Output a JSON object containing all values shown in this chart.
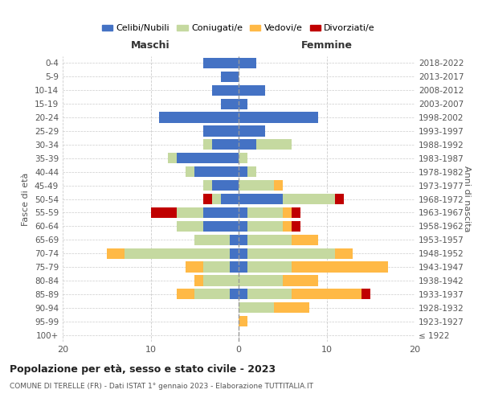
{
  "age_groups": [
    "100+",
    "95-99",
    "90-94",
    "85-89",
    "80-84",
    "75-79",
    "70-74",
    "65-69",
    "60-64",
    "55-59",
    "50-54",
    "45-49",
    "40-44",
    "35-39",
    "30-34",
    "25-29",
    "20-24",
    "15-19",
    "10-14",
    "5-9",
    "0-4"
  ],
  "birth_years": [
    "≤ 1922",
    "1923-1927",
    "1928-1932",
    "1933-1937",
    "1938-1942",
    "1943-1947",
    "1948-1952",
    "1953-1957",
    "1958-1962",
    "1963-1967",
    "1968-1972",
    "1973-1977",
    "1978-1982",
    "1983-1987",
    "1988-1992",
    "1993-1997",
    "1998-2002",
    "2003-2007",
    "2008-2012",
    "2013-2017",
    "2018-2022"
  ],
  "colors": {
    "celibi": "#4472C4",
    "coniugati": "#C5D9A0",
    "vedovi": "#FFB946",
    "divorziati": "#C00000"
  },
  "maschi": {
    "celibi": [
      0,
      0,
      0,
      1,
      0,
      1,
      1,
      1,
      4,
      4,
      2,
      3,
      5,
      7,
      3,
      4,
      9,
      2,
      3,
      2,
      4
    ],
    "coniugati": [
      0,
      0,
      0,
      4,
      4,
      3,
      12,
      4,
      3,
      3,
      1,
      1,
      1,
      1,
      1,
      0,
      0,
      0,
      0,
      0,
      0
    ],
    "vedovi": [
      0,
      0,
      0,
      2,
      1,
      2,
      2,
      0,
      0,
      0,
      0,
      0,
      0,
      0,
      0,
      0,
      0,
      0,
      0,
      0,
      0
    ],
    "divorziati": [
      0,
      0,
      0,
      0,
      0,
      0,
      0,
      0,
      0,
      3,
      1,
      0,
      0,
      0,
      0,
      0,
      0,
      0,
      0,
      0,
      0
    ]
  },
  "femmine": {
    "celibi": [
      0,
      0,
      0,
      1,
      0,
      1,
      1,
      1,
      1,
      1,
      5,
      0,
      1,
      0,
      2,
      3,
      9,
      1,
      3,
      0,
      2
    ],
    "coniugati": [
      0,
      0,
      4,
      5,
      5,
      5,
      10,
      5,
      4,
      4,
      6,
      4,
      1,
      1,
      4,
      0,
      0,
      0,
      0,
      0,
      0
    ],
    "vedovi": [
      0,
      1,
      4,
      8,
      4,
      11,
      2,
      3,
      1,
      1,
      0,
      1,
      0,
      0,
      0,
      0,
      0,
      0,
      0,
      0,
      0
    ],
    "divorziati": [
      0,
      0,
      0,
      1,
      0,
      0,
      0,
      0,
      1,
      1,
      1,
      0,
      0,
      0,
      0,
      0,
      0,
      0,
      0,
      0,
      0
    ]
  },
  "title": "Popolazione per età, sesso e stato civile - 2023",
  "subtitle": "COMUNE DI TERELLE (FR) - Dati ISTAT 1° gennaio 2023 - Elaborazione TUTTITALIA.IT",
  "xlabel_left": "Maschi",
  "xlabel_right": "Femmine",
  "ylabel_left": "Fasce di età",
  "ylabel_right": "Anni di nascita",
  "legend_labels": [
    "Celibi/Nubili",
    "Coniugati/e",
    "Vedovi/e",
    "Divorziati/e"
  ],
  "xlim": 20,
  "background_color": "#ffffff",
  "grid_color": "#cccccc"
}
